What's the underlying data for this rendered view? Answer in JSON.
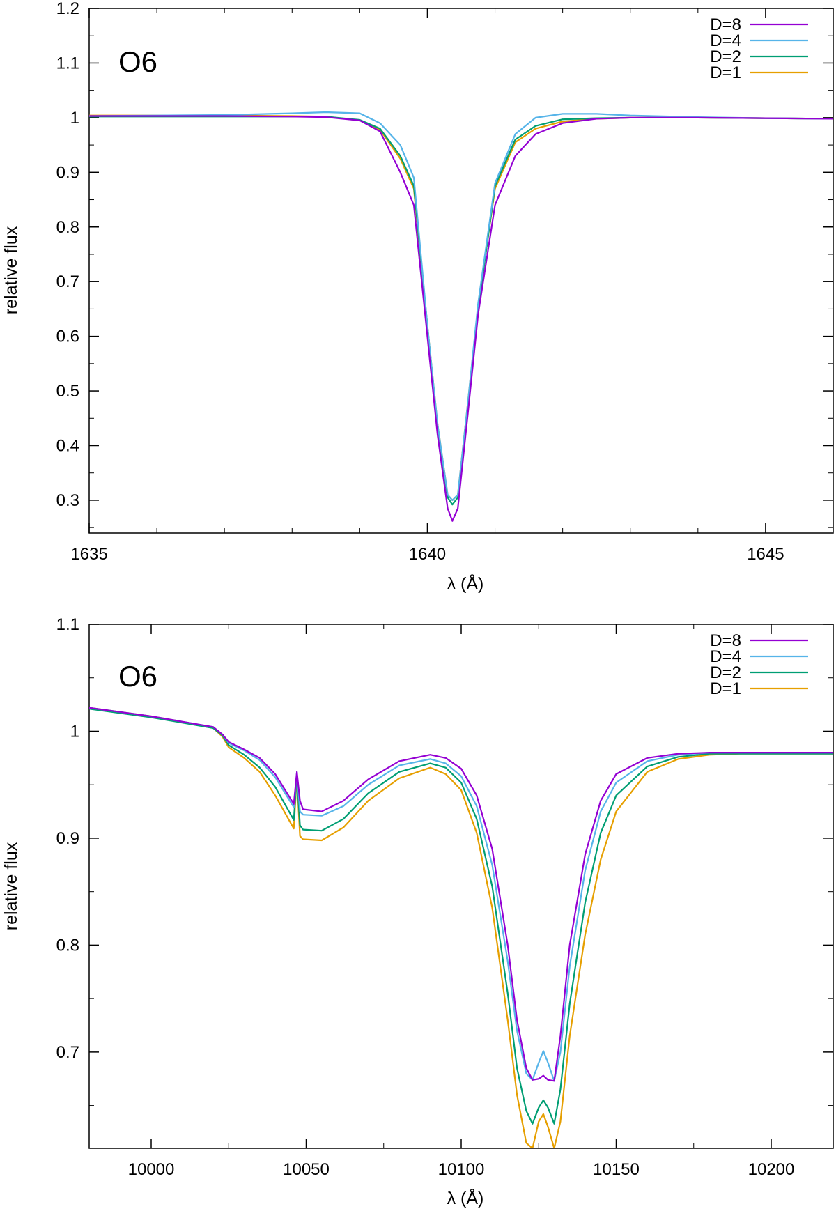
{
  "chart_data": [
    {
      "type": "line",
      "title": "O6",
      "xlabel": "λ (Å)",
      "ylabel": "relative flux",
      "xlim": [
        1635,
        1646
      ],
      "ylim": [
        0.24,
        1.2
      ],
      "x_ticks": [
        1635,
        1640,
        1645
      ],
      "x_tick_labels": [
        "1635",
        "1640",
        "1645"
      ],
      "y_ticks": [
        0.3,
        0.4,
        0.5,
        0.6,
        0.7,
        0.8,
        0.9,
        1.0,
        1.1,
        1.2
      ],
      "y_tick_labels": [
        "0.3",
        "0.4",
        "0.5",
        "0.6",
        "0.7",
        "0.8",
        "0.9",
        "1",
        "1.1",
        "1.2"
      ],
      "grid": false,
      "legend_position": "top-right",
      "series": [
        {
          "name": "D=8",
          "color": "#9400d3",
          "x": [
            1635,
            1636,
            1637,
            1638,
            1638.5,
            1639,
            1639.3,
            1639.6,
            1639.8,
            1640,
            1640.15,
            1640.3,
            1640.37,
            1640.45,
            1640.6,
            1640.75,
            1641,
            1641.3,
            1641.6,
            1642,
            1642.5,
            1643,
            1644,
            1645,
            1646
          ],
          "y": [
            1.003,
            1.003,
            1.003,
            1.002,
            1.001,
            0.995,
            0.975,
            0.9,
            0.84,
            0.6,
            0.42,
            0.285,
            0.262,
            0.285,
            0.46,
            0.64,
            0.84,
            0.93,
            0.97,
            0.99,
            0.998,
            1.0,
            1.0,
            0.999,
            0.998
          ]
        },
        {
          "name": "D=4",
          "color": "#56b4e9",
          "x": [
            1635,
            1636,
            1637,
            1638,
            1638.5,
            1639,
            1639.3,
            1639.6,
            1639.8,
            1640,
            1640.15,
            1640.3,
            1640.37,
            1640.45,
            1640.6,
            1640.75,
            1641,
            1641.3,
            1641.6,
            1642,
            1642.5,
            1643,
            1644,
            1645,
            1646
          ],
          "y": [
            1.003,
            1.004,
            1.005,
            1.008,
            1.01,
            1.008,
            0.99,
            0.95,
            0.89,
            0.62,
            0.44,
            0.31,
            0.3,
            0.31,
            0.48,
            0.66,
            0.88,
            0.97,
            1.0,
            1.007,
            1.007,
            1.004,
            1.001,
            0.999,
            0.998
          ]
        },
        {
          "name": "D=2",
          "color": "#009e73",
          "x": [
            1635,
            1636,
            1637,
            1638,
            1638.5,
            1639,
            1639.3,
            1639.6,
            1639.8,
            1640,
            1640.15,
            1640.3,
            1640.37,
            1640.45,
            1640.6,
            1640.75,
            1641,
            1641.3,
            1641.6,
            1642,
            1642.5,
            1643,
            1644,
            1645,
            1646
          ],
          "y": [
            1.002,
            1.002,
            1.002,
            1.002,
            1.002,
            0.996,
            0.98,
            0.93,
            0.875,
            0.62,
            0.435,
            0.305,
            0.292,
            0.305,
            0.475,
            0.65,
            0.875,
            0.96,
            0.985,
            0.997,
            0.999,
            1.0,
            1.0,
            0.999,
            0.998
          ]
        },
        {
          "name": "D=1",
          "color": "#e69f00",
          "x": [
            1635,
            1636,
            1637,
            1638,
            1638.5,
            1639,
            1639.3,
            1639.6,
            1639.8,
            1640,
            1640.15,
            1640.3,
            1640.37,
            1640.45,
            1640.6,
            1640.75,
            1641,
            1641.3,
            1641.6,
            1642,
            1642.5,
            1643,
            1644,
            1645,
            1646
          ],
          "y": [
            1.004,
            1.004,
            1.004,
            1.003,
            1.002,
            0.995,
            0.978,
            0.925,
            0.87,
            0.62,
            0.44,
            0.31,
            0.3,
            0.31,
            0.48,
            0.655,
            0.87,
            0.955,
            0.98,
            0.993,
            0.998,
            1.0,
            1.0,
            0.999,
            0.998
          ]
        }
      ]
    },
    {
      "type": "line",
      "title": "O6",
      "xlabel": "λ (Å)",
      "ylabel": "relative flux",
      "xlim": [
        9980,
        10220
      ],
      "ylim": [
        0.61,
        1.1
      ],
      "x_ticks": [
        10000,
        10050,
        10100,
        10150,
        10200
      ],
      "x_tick_labels": [
        "10000",
        "10050",
        "10100",
        "10150",
        "10200"
      ],
      "y_ticks": [
        0.7,
        0.8,
        0.9,
        1.0,
        1.1
      ],
      "y_tick_labels": [
        "0.7",
        "0.8",
        "0.9",
        "1",
        "1.1"
      ],
      "grid": false,
      "legend_position": "top-right",
      "series": [
        {
          "name": "D=8",
          "color": "#9400d3",
          "x": [
            9980,
            9990,
            10000,
            10010,
            10020,
            10023,
            10025,
            10030,
            10035,
            10040,
            10046,
            10047,
            10048,
            10049,
            10055,
            10062,
            10070,
            10080,
            10090,
            10095,
            10100,
            10105,
            10110,
            10115,
            10118,
            10121,
            10123,
            10125,
            10126.5,
            10128,
            10130,
            10132,
            10135,
            10140,
            10145,
            10150,
            10160,
            10170,
            10180,
            10190,
            10200,
            10210,
            10220
          ],
          "y": [
            1.022,
            1.018,
            1.014,
            1.009,
            1.004,
            0.997,
            0.99,
            0.983,
            0.975,
            0.96,
            0.932,
            0.962,
            0.935,
            0.927,
            0.925,
            0.935,
            0.955,
            0.972,
            0.978,
            0.975,
            0.965,
            0.94,
            0.89,
            0.8,
            0.73,
            0.685,
            0.674,
            0.675,
            0.678,
            0.674,
            0.673,
            0.715,
            0.8,
            0.885,
            0.935,
            0.96,
            0.975,
            0.979,
            0.98,
            0.98,
            0.98,
            0.98,
            0.98
          ]
        },
        {
          "name": "D=4",
          "color": "#56b4e9",
          "x": [
            9980,
            9990,
            10000,
            10010,
            10020,
            10023,
            10025,
            10030,
            10035,
            10040,
            10046,
            10047,
            10048,
            10049,
            10055,
            10062,
            10070,
            10080,
            10090,
            10095,
            10100,
            10105,
            10110,
            10115,
            10118,
            10121,
            10123,
            10125,
            10126.5,
            10128,
            10130,
            10132,
            10135,
            10140,
            10145,
            10150,
            10160,
            10170,
            10180,
            10190,
            10200,
            10210,
            10220
          ],
          "y": [
            1.022,
            1.018,
            1.014,
            1.009,
            1.004,
            0.997,
            0.989,
            0.982,
            0.973,
            0.957,
            0.929,
            0.962,
            0.925,
            0.922,
            0.921,
            0.93,
            0.95,
            0.968,
            0.974,
            0.97,
            0.958,
            0.93,
            0.875,
            0.785,
            0.72,
            0.68,
            0.674,
            0.69,
            0.701,
            0.69,
            0.673,
            0.7,
            0.78,
            0.87,
            0.925,
            0.952,
            0.972,
            0.978,
            0.98,
            0.98,
            0.98,
            0.98,
            0.98
          ]
        },
        {
          "name": "D=2",
          "color": "#009e73",
          "x": [
            9980,
            9990,
            10000,
            10010,
            10020,
            10023,
            10025,
            10030,
            10035,
            10040,
            10046,
            10047,
            10048,
            10049,
            10055,
            10062,
            10070,
            10080,
            10090,
            10095,
            10100,
            10105,
            10110,
            10115,
            10118,
            10121,
            10123,
            10125,
            10126.5,
            10128,
            10130,
            10132,
            10135,
            10140,
            10145,
            10150,
            10160,
            10170,
            10180,
            10190,
            10200,
            10210,
            10220
          ],
          "y": [
            1.021,
            1.017,
            1.013,
            1.008,
            1.003,
            0.996,
            0.987,
            0.978,
            0.966,
            0.948,
            0.917,
            0.96,
            0.912,
            0.908,
            0.907,
            0.918,
            0.942,
            0.962,
            0.97,
            0.966,
            0.952,
            0.918,
            0.855,
            0.755,
            0.685,
            0.645,
            0.633,
            0.648,
            0.655,
            0.648,
            0.633,
            0.665,
            0.745,
            0.84,
            0.905,
            0.94,
            0.967,
            0.976,
            0.979,
            0.979,
            0.979,
            0.979,
            0.979
          ]
        },
        {
          "name": "D=1",
          "color": "#e69f00",
          "x": [
            9980,
            9990,
            10000,
            10010,
            10020,
            10023,
            10025,
            10030,
            10035,
            10040,
            10046,
            10047,
            10048,
            10049,
            10055,
            10062,
            10070,
            10080,
            10090,
            10095,
            10100,
            10105,
            10110,
            10115,
            10118,
            10121,
            10123,
            10125,
            10126.5,
            10128,
            10130,
            10132,
            10135,
            10140,
            10145,
            10150,
            10160,
            10170,
            10180,
            10190,
            10200,
            10210,
            10220
          ],
          "y": [
            1.022,
            1.018,
            1.014,
            1.009,
            1.003,
            0.995,
            0.985,
            0.975,
            0.962,
            0.94,
            0.909,
            0.958,
            0.902,
            0.899,
            0.898,
            0.91,
            0.935,
            0.956,
            0.966,
            0.96,
            0.945,
            0.905,
            0.835,
            0.73,
            0.66,
            0.615,
            0.61,
            0.635,
            0.642,
            0.63,
            0.61,
            0.635,
            0.715,
            0.81,
            0.88,
            0.925,
            0.962,
            0.974,
            0.978,
            0.979,
            0.979,
            0.979,
            0.979
          ]
        }
      ]
    }
  ]
}
